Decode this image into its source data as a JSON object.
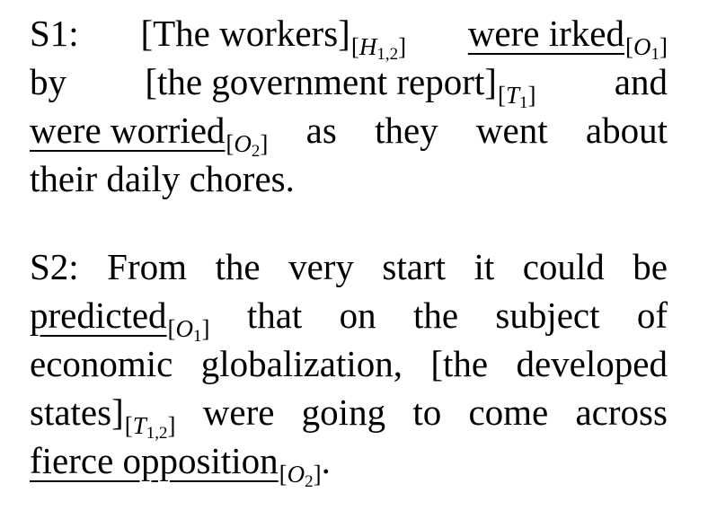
{
  "s1": {
    "label": "S1:",
    "holder_span": "[The workers]",
    "holder_tag": {
      "letter": "H",
      "index": "1,2"
    },
    "op1": "were irked",
    "op1_tag": {
      "letter": "O",
      "index": "1"
    },
    "w_by": "by",
    "target_span": "[the government report]",
    "target_tag": {
      "letter": "T",
      "index": "1"
    },
    "w_and": "and",
    "op2": "were worried",
    "op2_tag": {
      "letter": "O",
      "index": "2"
    },
    "w_as": "as",
    "w_they": "they",
    "w_went": "went",
    "w_about": "about",
    "tail": "their daily chores."
  },
  "s2": {
    "label": "S2:",
    "l1_words": [
      "From",
      "the",
      "very",
      "start",
      "it",
      "could",
      "be"
    ],
    "op1": "predicted",
    "op1_tag": {
      "letter": "O",
      "index": "1"
    },
    "l2_words": [
      "that",
      "on",
      "the",
      "subject",
      "of"
    ],
    "l3_words": [
      "economic",
      "globalization,",
      "[the",
      "developed"
    ],
    "target_end": "states]",
    "target_tag": {
      "letter": "T",
      "index": "1,2"
    },
    "l4_words": [
      "were",
      "going",
      "to",
      "come",
      "across"
    ],
    "op2": "fierce opposition",
    "op2_tag": {
      "letter": "O",
      "index": "2"
    },
    "end_period": "."
  }
}
